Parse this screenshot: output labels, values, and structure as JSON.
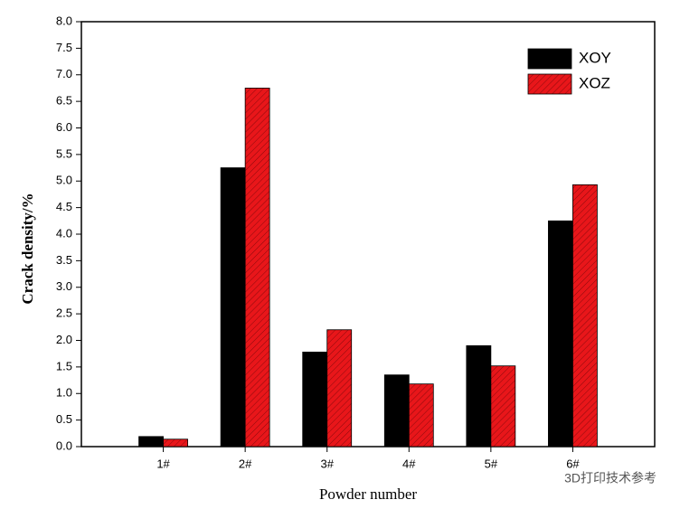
{
  "chart_data": {
    "type": "bar",
    "x_label": "Powder number",
    "y_label": "Crack density/%",
    "categories": [
      "1#",
      "2#",
      "3#",
      "4#",
      "5#",
      "6#"
    ],
    "series": [
      {
        "name": "XOY",
        "color": "#000000",
        "values": [
          0.19,
          5.25,
          1.78,
          1.35,
          1.9,
          4.25
        ]
      },
      {
        "name": "XOZ",
        "color": "#e8161a",
        "hatch": true,
        "values": [
          0.14,
          6.75,
          2.2,
          1.18,
          1.52,
          4.93
        ]
      }
    ],
    "ylim": [
      0,
      8
    ],
    "yticks": [
      {
        "value": 0,
        "label": "0.0"
      },
      0.5,
      {
        "value": 1,
        "label": "1.0"
      },
      1.5,
      {
        "value": 2,
        "label": "2.0"
      },
      2.5,
      {
        "value": 3,
        "label": "3.0"
      },
      3.5,
      {
        "value": 4,
        "label": "4.0"
      },
      4.5,
      {
        "value": 5,
        "label": "5.0"
      },
      5.5,
      {
        "value": 6,
        "label": "6.0"
      },
      6.5,
      {
        "value": 7,
        "label": "7.0"
      },
      7.5,
      {
        "value": 8,
        "label": "8.0"
      }
    ],
    "legend": "upper right",
    "watermark": "3D打印技术参考"
  }
}
